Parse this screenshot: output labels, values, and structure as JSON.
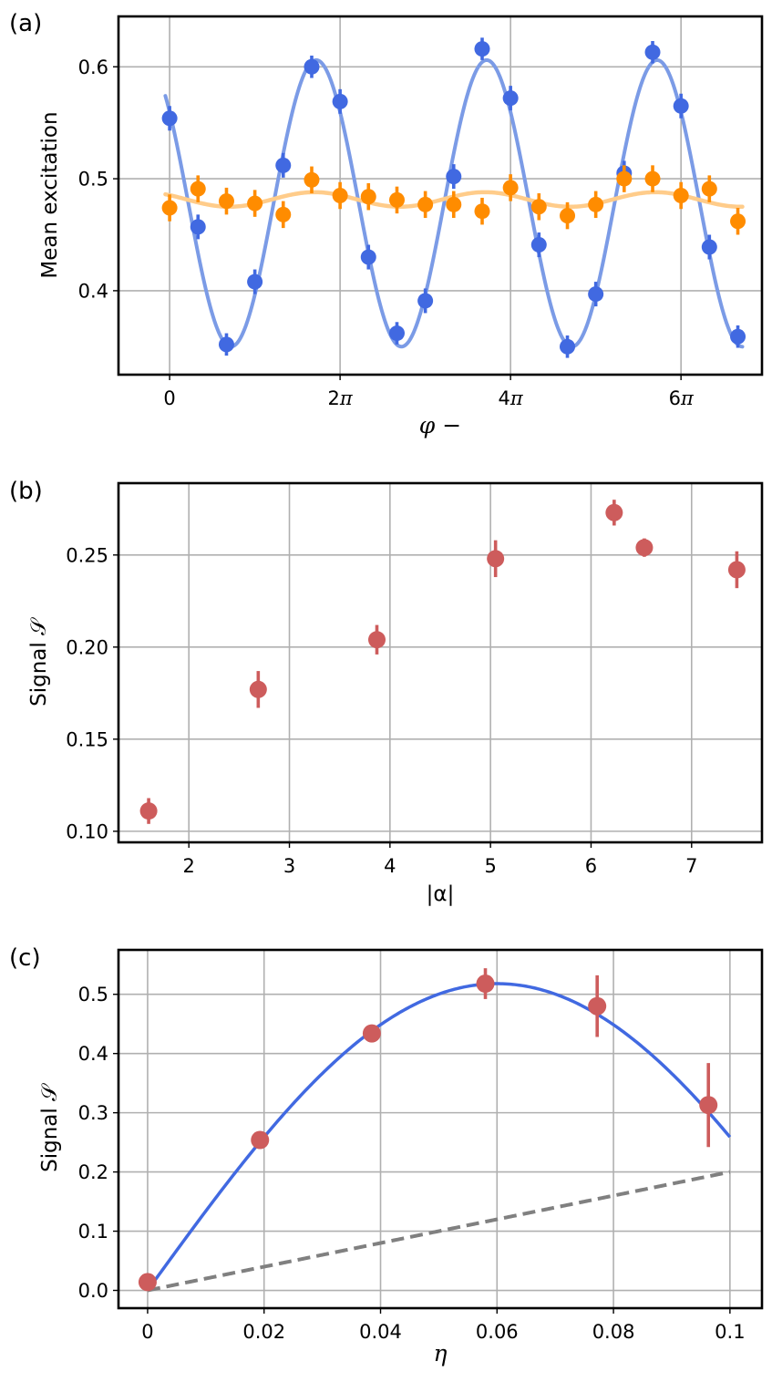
{
  "chart_data": [
    {
      "panel_label": "(a)",
      "type": "scatter",
      "xlabel": "φ −",
      "ylabel": "Mean excitation",
      "xlim": [
        -0.6,
        6.95
      ],
      "ylim": [
        0.325,
        0.645
      ],
      "x_ticks": [
        {
          "value": 0,
          "label": "0"
        },
        {
          "value": 2,
          "label": "2π"
        },
        {
          "value": 4,
          "label": "4π"
        },
        {
          "value": 6,
          "label": "6π"
        }
      ],
      "y_ticks": [
        {
          "value": 0.4,
          "label": "0.4"
        },
        {
          "value": 0.5,
          "label": "0.5"
        },
        {
          "value": 0.6,
          "label": "0.6"
        }
      ],
      "x_unit_note": "x values in units of π",
      "grid": true,
      "series": [
        {
          "color": "#4169e1",
          "fit_color": "#7b9be6",
          "x": [
            0,
            0.333,
            0.667,
            1.0,
            1.333,
            1.667,
            2.0,
            2.333,
            2.667,
            3.0,
            3.333,
            3.667,
            4.0,
            4.333,
            4.667,
            5.0,
            5.333,
            5.667,
            6.0,
            6.333,
            6.667
          ],
          "y": [
            0.554,
            0.457,
            0.352,
            0.408,
            0.512,
            0.6,
            0.569,
            0.43,
            0.362,
            0.391,
            0.502,
            0.616,
            0.572,
            0.441,
            0.35,
            0.397,
            0.505,
            0.613,
            0.565,
            0.439,
            0.359
          ],
          "yerr": [
            0.011,
            0.011,
            0.01,
            0.011,
            0.011,
            0.01,
            0.011,
            0.011,
            0.01,
            0.011,
            0.011,
            0.01,
            0.011,
            0.011,
            0.01,
            0.011,
            0.011,
            0.01,
            0.011,
            0.011,
            0.01
          ],
          "fit": {
            "model": "offset + amplitude * cos(pi*(x - x0))",
            "offset": 0.478,
            "amplitude": 0.128,
            "x0": 1.72
          }
        },
        {
          "color": "#ff8c00",
          "fit_color": "#ffcc8a",
          "x": [
            0,
            0.333,
            0.667,
            1.0,
            1.333,
            1.667,
            2.0,
            2.333,
            2.667,
            3.0,
            3.333,
            3.667,
            4.0,
            4.333,
            4.667,
            5.0,
            5.333,
            5.667,
            6.0,
            6.333,
            6.667
          ],
          "y": [
            0.474,
            0.491,
            0.48,
            0.478,
            0.468,
            0.499,
            0.485,
            0.484,
            0.481,
            0.477,
            0.477,
            0.471,
            0.492,
            0.475,
            0.467,
            0.477,
            0.5,
            0.5,
            0.485,
            0.491,
            0.462
          ],
          "yerr": [
            0.012,
            0.012,
            0.012,
            0.012,
            0.012,
            0.012,
            0.012,
            0.012,
            0.012,
            0.012,
            0.012,
            0.012,
            0.012,
            0.012,
            0.012,
            0.012,
            0.012,
            0.012,
            0.012,
            0.012,
            0.012
          ],
          "fit": {
            "model": "offset + amplitude * cos(pi*(x - x0))",
            "offset": 0.4815,
            "amplitude": 0.0065,
            "x0": 1.7
          }
        }
      ]
    },
    {
      "panel_label": "(b)",
      "type": "scatter",
      "xlabel": "|α|",
      "ylabel": "Signal 𝒮",
      "xlim": [
        1.3,
        7.7
      ],
      "ylim": [
        0.094,
        0.289
      ],
      "x_ticks": [
        {
          "value": 2,
          "label": "2"
        },
        {
          "value": 3,
          "label": "3"
        },
        {
          "value": 4,
          "label": "4"
        },
        {
          "value": 5,
          "label": "5"
        },
        {
          "value": 6,
          "label": "6"
        },
        {
          "value": 7,
          "label": "7"
        }
      ],
      "y_ticks": [
        {
          "value": 0.1,
          "label": "0.10"
        },
        {
          "value": 0.15,
          "label": "0.15"
        },
        {
          "value": 0.2,
          "label": "0.20"
        },
        {
          "value": 0.25,
          "label": "0.25"
        }
      ],
      "grid": true,
      "series": [
        {
          "color": "#cd5c5c",
          "x": [
            1.6,
            2.69,
            3.87,
            5.05,
            6.23,
            6.53,
            7.45
          ],
          "y": [
            0.111,
            0.177,
            0.204,
            0.248,
            0.273,
            0.254,
            0.242
          ],
          "yerr": [
            0.007,
            0.01,
            0.008,
            0.01,
            0.007,
            0.005,
            0.01
          ]
        }
      ]
    },
    {
      "panel_label": "(c)",
      "type": "scatter",
      "xlabel": "η",
      "ylabel": "Signal 𝒮",
      "xlim": [
        -0.005,
        0.1055
      ],
      "ylim": [
        -0.03,
        0.575
      ],
      "x_ticks": [
        {
          "value": 0,
          "label": "0"
        },
        {
          "value": 0.02,
          "label": "0.02"
        },
        {
          "value": 0.04,
          "label": "0.04"
        },
        {
          "value": 0.06,
          "label": "0.06"
        },
        {
          "value": 0.08,
          "label": "0.08"
        },
        {
          "value": 0.1,
          "label": "0.1"
        }
      ],
      "y_ticks": [
        {
          "value": 0.0,
          "label": "0.0"
        },
        {
          "value": 0.1,
          "label": "0.1"
        },
        {
          "value": 0.2,
          "label": "0.2"
        },
        {
          "value": 0.3,
          "label": "0.3"
        },
        {
          "value": 0.4,
          "label": "0.4"
        },
        {
          "value": 0.5,
          "label": "0.5"
        }
      ],
      "grid": true,
      "series": [
        {
          "color": "#cd5c5c",
          "x": [
            0,
            0.0193,
            0.0385,
            0.058,
            0.0772,
            0.0963
          ],
          "y": [
            0.014,
            0.254,
            0.434,
            0.518,
            0.48,
            0.313
          ],
          "yerr": [
            0.006,
            0.008,
            0.009,
            0.026,
            0.052,
            0.071
          ]
        }
      ],
      "curves": [
        {
          "style": "solid",
          "color": "#4169e1",
          "model": "0.518 * sin(pi*x/0.12)",
          "x_range": [
            0,
            0.1
          ]
        },
        {
          "style": "dashed",
          "color": "#808080",
          "model": "2*x",
          "x_range": [
            0,
            0.1
          ]
        }
      ]
    }
  ]
}
